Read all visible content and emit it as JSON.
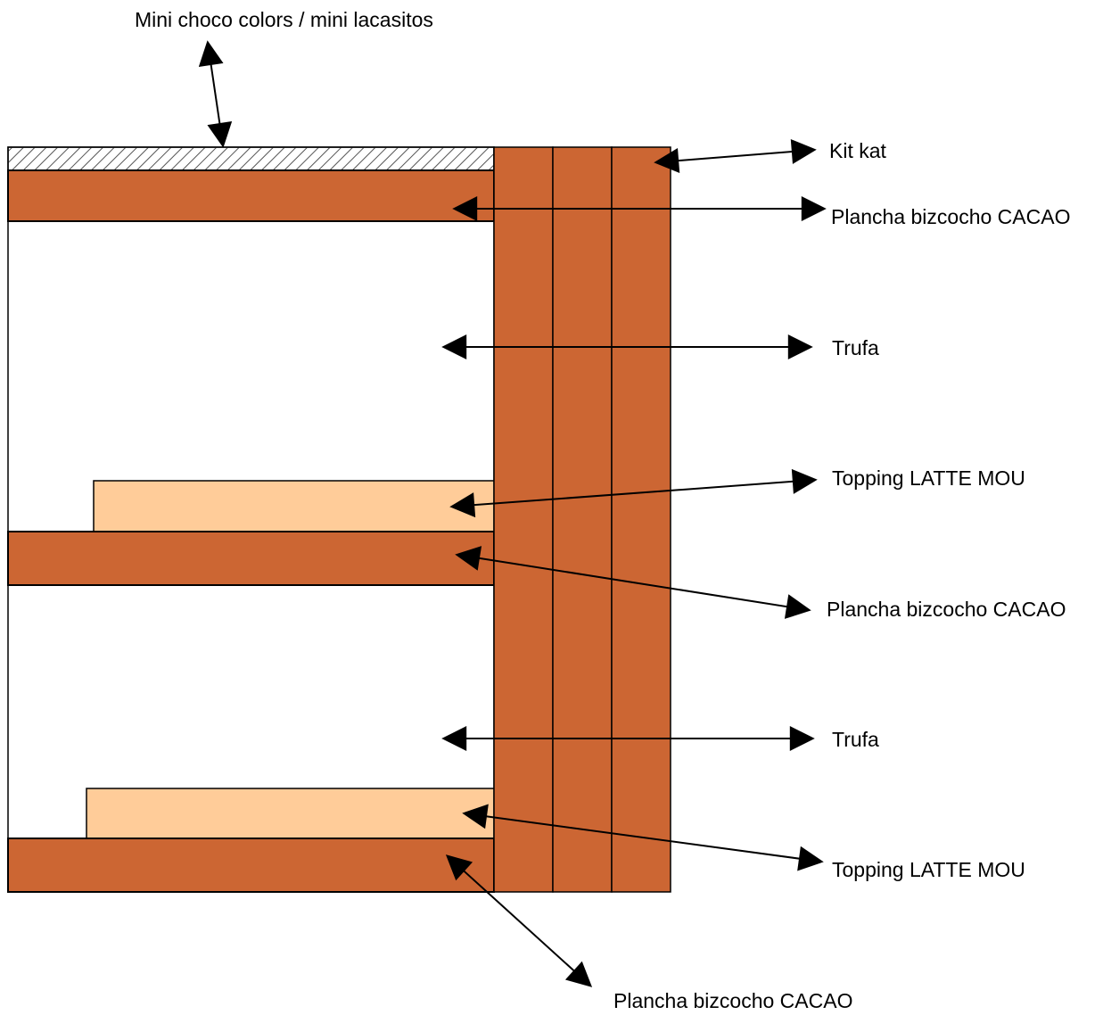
{
  "labels": {
    "sprinkles": "Mini choco colors / mini lacasitos",
    "kitkat": "Kit kat",
    "sponge_top": "Plancha bizcocho CACAO",
    "truffle_upper": "Trufa",
    "topping_upper": "Topping LATTE MOU",
    "sponge_middle": "Plancha bizcocho CACAO",
    "truffle_lower": "Trufa",
    "topping_lower": "Topping LATTE MOU",
    "sponge_bottom": "Plancha bizcocho CACAO"
  },
  "colors": {
    "sponge": "#CC6633",
    "kitkat": "#CC6633",
    "topping": "#FFCC99",
    "truffle": "#FFFFFF",
    "outline": "#000000",
    "hatch": "#555555"
  }
}
